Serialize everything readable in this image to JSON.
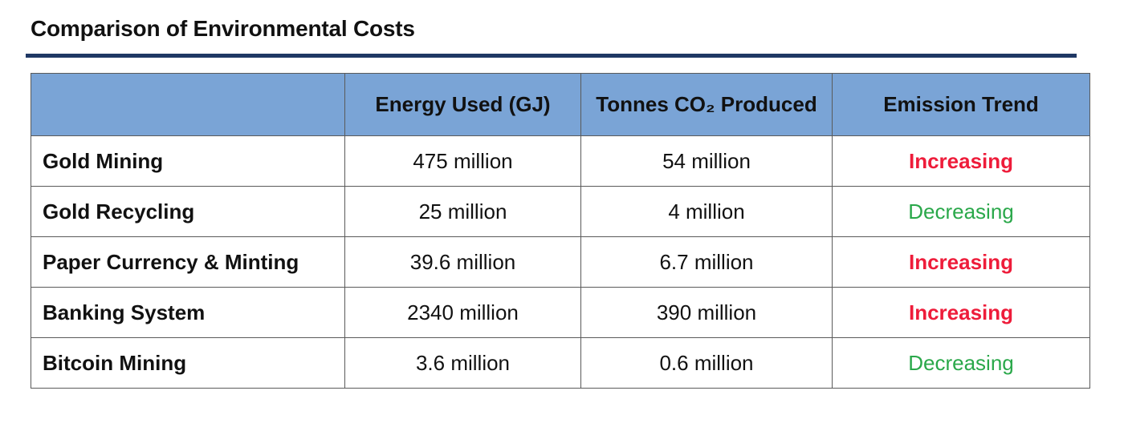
{
  "title": "Comparison of Environmental Costs",
  "colors": {
    "title_rule": "#1f3864",
    "header_bg": "#7aa4d6",
    "increasing": "#ee1c3a",
    "decreasing": "#2aa84a",
    "border": "#5a5a5a"
  },
  "chart_data": {
    "type": "table",
    "title": "Comparison of Environmental Costs",
    "columns": [
      "",
      "Energy Used (GJ)",
      "Tonnes CO₂ Produced",
      "Emission Trend"
    ],
    "rows": [
      {
        "label": "Gold Mining",
        "energy": "475 million",
        "co2": "54 million",
        "trend": "Increasing"
      },
      {
        "label": "Gold Recycling",
        "energy": "25 million",
        "co2": "4 million",
        "trend": "Decreasing"
      },
      {
        "label": "Paper Currency & Minting",
        "energy": "39.6 million",
        "co2": "6.7 million",
        "trend": "Increasing"
      },
      {
        "label": "Banking System",
        "energy": "2340 million",
        "co2": "390 million",
        "trend": "Increasing"
      },
      {
        "label": "Bitcoin Mining",
        "energy": "3.6 million",
        "co2": "0.6 million",
        "trend": "Decreasing"
      }
    ]
  }
}
